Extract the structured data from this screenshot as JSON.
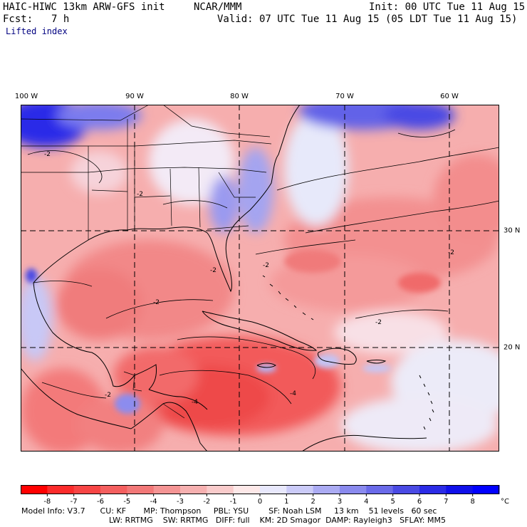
{
  "header": {
    "model": "HAIC-HIWC 13km ARW-GFS init",
    "org": "NCAR/MMM",
    "fcst_label": "Fcst:",
    "fcst_value": "7 h",
    "init": "Init: 00 UTC Tue 11 Aug 15",
    "valid": "Valid: 07 UTC Tue 11 Aug 15 (05 LDT Tue 11 Aug 15)",
    "field": "Lifted index"
  },
  "map": {
    "lon_labels": [
      "100 W",
      "90 W",
      "80 W",
      "70 W",
      "60 W"
    ],
    "lat_labels": [
      "30 N",
      "20 N"
    ],
    "contour_labels": [
      "-2",
      "-2",
      "-2",
      "-2",
      "-4",
      "-2",
      "-2",
      "-4",
      "-2",
      "-2"
    ],
    "ocean_color": "#f7b8b8",
    "land_color": "#f4a4a4"
  },
  "colorbar": {
    "ticks": [
      "-8",
      "-7",
      "-6",
      "-5",
      "-4",
      "-3",
      "-2",
      "-1",
      "0",
      "1",
      "2",
      "3",
      "4",
      "5",
      "6",
      "7",
      "8"
    ],
    "unit": "°C",
    "colors": [
      "#ff0000",
      "#fb2b2b",
      "#f74545",
      "#f45f5f",
      "#f27878",
      "#f49494",
      "#f6b0b0",
      "#f9cbcb",
      "#fde8e8",
      "#e8e8fc",
      "#cbcbf8",
      "#ababf3",
      "#8a8aee",
      "#6a6ae9",
      "#4a4ae4",
      "#2b2be6",
      "#1010ea",
      "#0000ff"
    ]
  },
  "footer": {
    "line1": "Model Info: V3.7      CU: KF       MP: Thompson     PBL: YSU        SF: Noah LSM     13 km    51 levels   60 sec",
    "line2": "LW: RRTMG    SW: RRTMG   DIFF: full    KM: 2D Smagor  DAMP: Rayleigh3   SFLAY: MM5"
  }
}
